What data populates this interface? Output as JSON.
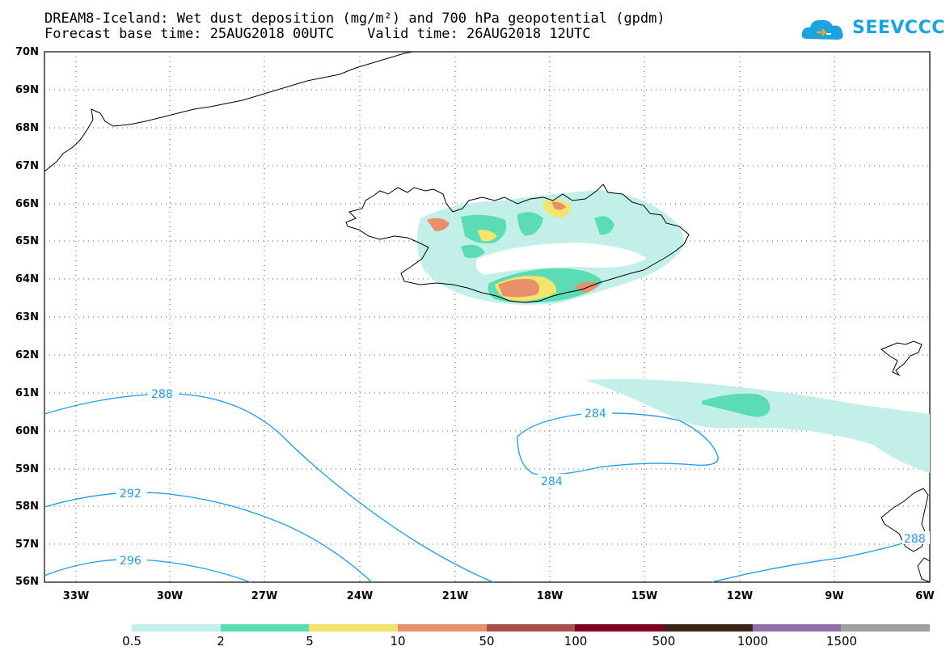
{
  "title": {
    "line1": "DREAM8-Iceland: Wet dust deposition (mg/m²) and 700 hPa geopotential (gpdm)",
    "line2": "Forecast base time: 25AUG2018 00UTC    Valid time: 26AUG2018 12UTC"
  },
  "logo": {
    "text": "SEEVCCC",
    "icon": "cloud-logo-icon",
    "color": "#1aa3e0"
  },
  "axes": {
    "lat_labels": [
      "70N",
      "69N",
      "68N",
      "67N",
      "66N",
      "65N",
      "64N",
      "63N",
      "62N",
      "61N",
      "60N",
      "59N",
      "58N",
      "57N",
      "56N"
    ],
    "lon_labels": [
      "33W",
      "30W",
      "27W",
      "24W",
      "21W",
      "18W",
      "15W",
      "12W",
      "9W",
      "6W"
    ]
  },
  "contours": {
    "color": "#1e9be8",
    "labels": [
      "288",
      "292",
      "296",
      "284",
      "284",
      "288"
    ]
  },
  "colorbar": {
    "colors": [
      "#c2f0e8",
      "#5cdcb4",
      "#f2e46c",
      "#e8906a",
      "#a8504c",
      "#800020",
      "#3c2418",
      "#9070a8",
      "#a0a0a0"
    ],
    "labels": [
      "0.5",
      "2",
      "5",
      "10",
      "50",
      "100",
      "500",
      "1000",
      "1500"
    ]
  }
}
